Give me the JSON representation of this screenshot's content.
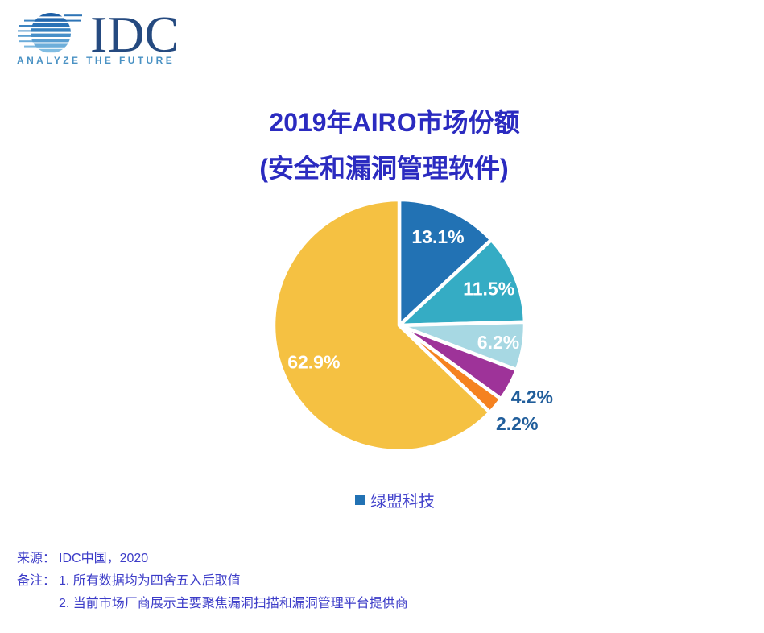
{
  "logo": {
    "brand": "IDC",
    "tagline": "ANALYZE THE FUTURE"
  },
  "title": {
    "line1": "2019年AIRO市场份额",
    "line2": "(安全和漏洞管理软件)"
  },
  "chart_data": {
    "type": "pie",
    "title": "2019年AIRO市场份额(安全和漏洞管理软件)",
    "unit": "%",
    "start_angle": "12-oclock",
    "direction": "clockwise",
    "slices": [
      {
        "label": "13.1%",
        "value": 13.1,
        "color": "#2272B4",
        "label_placement": "inside",
        "label_r": 0.77
      },
      {
        "label": "11.5%",
        "value": 11.5,
        "color": "#35ACC4",
        "label_placement": "inside",
        "label_r": 0.77
      },
      {
        "label": "6.2%",
        "value": 6.2,
        "color": "#A7D8E3",
        "label_placement": "inside",
        "label_r": 0.8
      },
      {
        "label": "4.2%",
        "value": 4.2,
        "color": "#9E3399",
        "label_placement": "outside",
        "label_r": 1.2
      },
      {
        "label": "2.2%",
        "value": 2.2,
        "color": "#F58220",
        "label_placement": "outside",
        "label_r": 1.22
      },
      {
        "label": "62.9%",
        "value": 62.9,
        "color": "#F5C142",
        "label_placement": "inside",
        "label_r": 0.74
      }
    ],
    "label_colors": {
      "inside": "#FFFFFF",
      "outside": "#215E9B"
    },
    "legend": {
      "position": "bottom",
      "items": [
        {
          "label": "绿盟科技",
          "color": "#2272B4"
        }
      ]
    }
  },
  "footer": {
    "source_label": "来源：",
    "source_value": "IDC中国，2020",
    "notes_label": "备注：",
    "notes": [
      "1. 所有数据均为四舍五入后取值",
      "2. 当前市场厂商展示主要聚焦漏洞扫描和漏洞管理平台提供商"
    ]
  },
  "colors": {
    "title": "#2B2BC0",
    "footer_text": "#3C3CC8",
    "legend_text": "#4343CC",
    "outside_label": "#215E9B",
    "logo_brand": "#254A80",
    "logo_tagline": "#4A92C4"
  }
}
